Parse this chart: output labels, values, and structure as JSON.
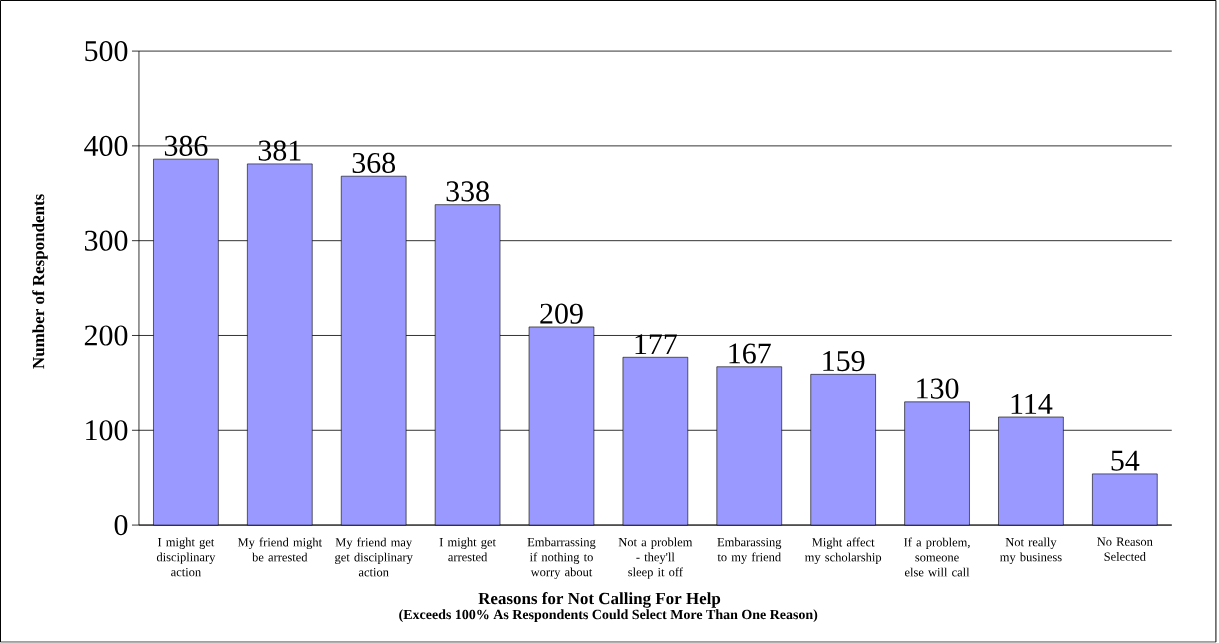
{
  "chart_data": {
    "type": "bar",
    "xlabel": "Reasons for Not Calling For Help",
    "ylabel": "Number of Respondents",
    "annotations": [
      "(Exceeds 100% As Respondents Could Select More Than One Reason)"
    ],
    "categories": [
      "I might get disciplinary action",
      "My friend might be arrested",
      "My friend may get disciplinary action",
      "I might get arrested",
      "Embarrassing if nothing to worry about",
      "Not a problem - they'll sleep it off",
      "Embarassing to my friend",
      "Might affect my scholarship",
      "If a problem, someone else will call",
      "Not really my business",
      "No Reason Selected"
    ],
    "values": [
      386,
      381,
      368,
      338,
      209,
      177,
      167,
      159,
      130,
      114,
      54
    ],
    "color": "#9999ff",
    "ylim": [
      0,
      500
    ],
    "yticks": [
      0,
      100,
      200,
      300,
      400,
      500
    ],
    "grid": "y",
    "data_labels": true
  }
}
